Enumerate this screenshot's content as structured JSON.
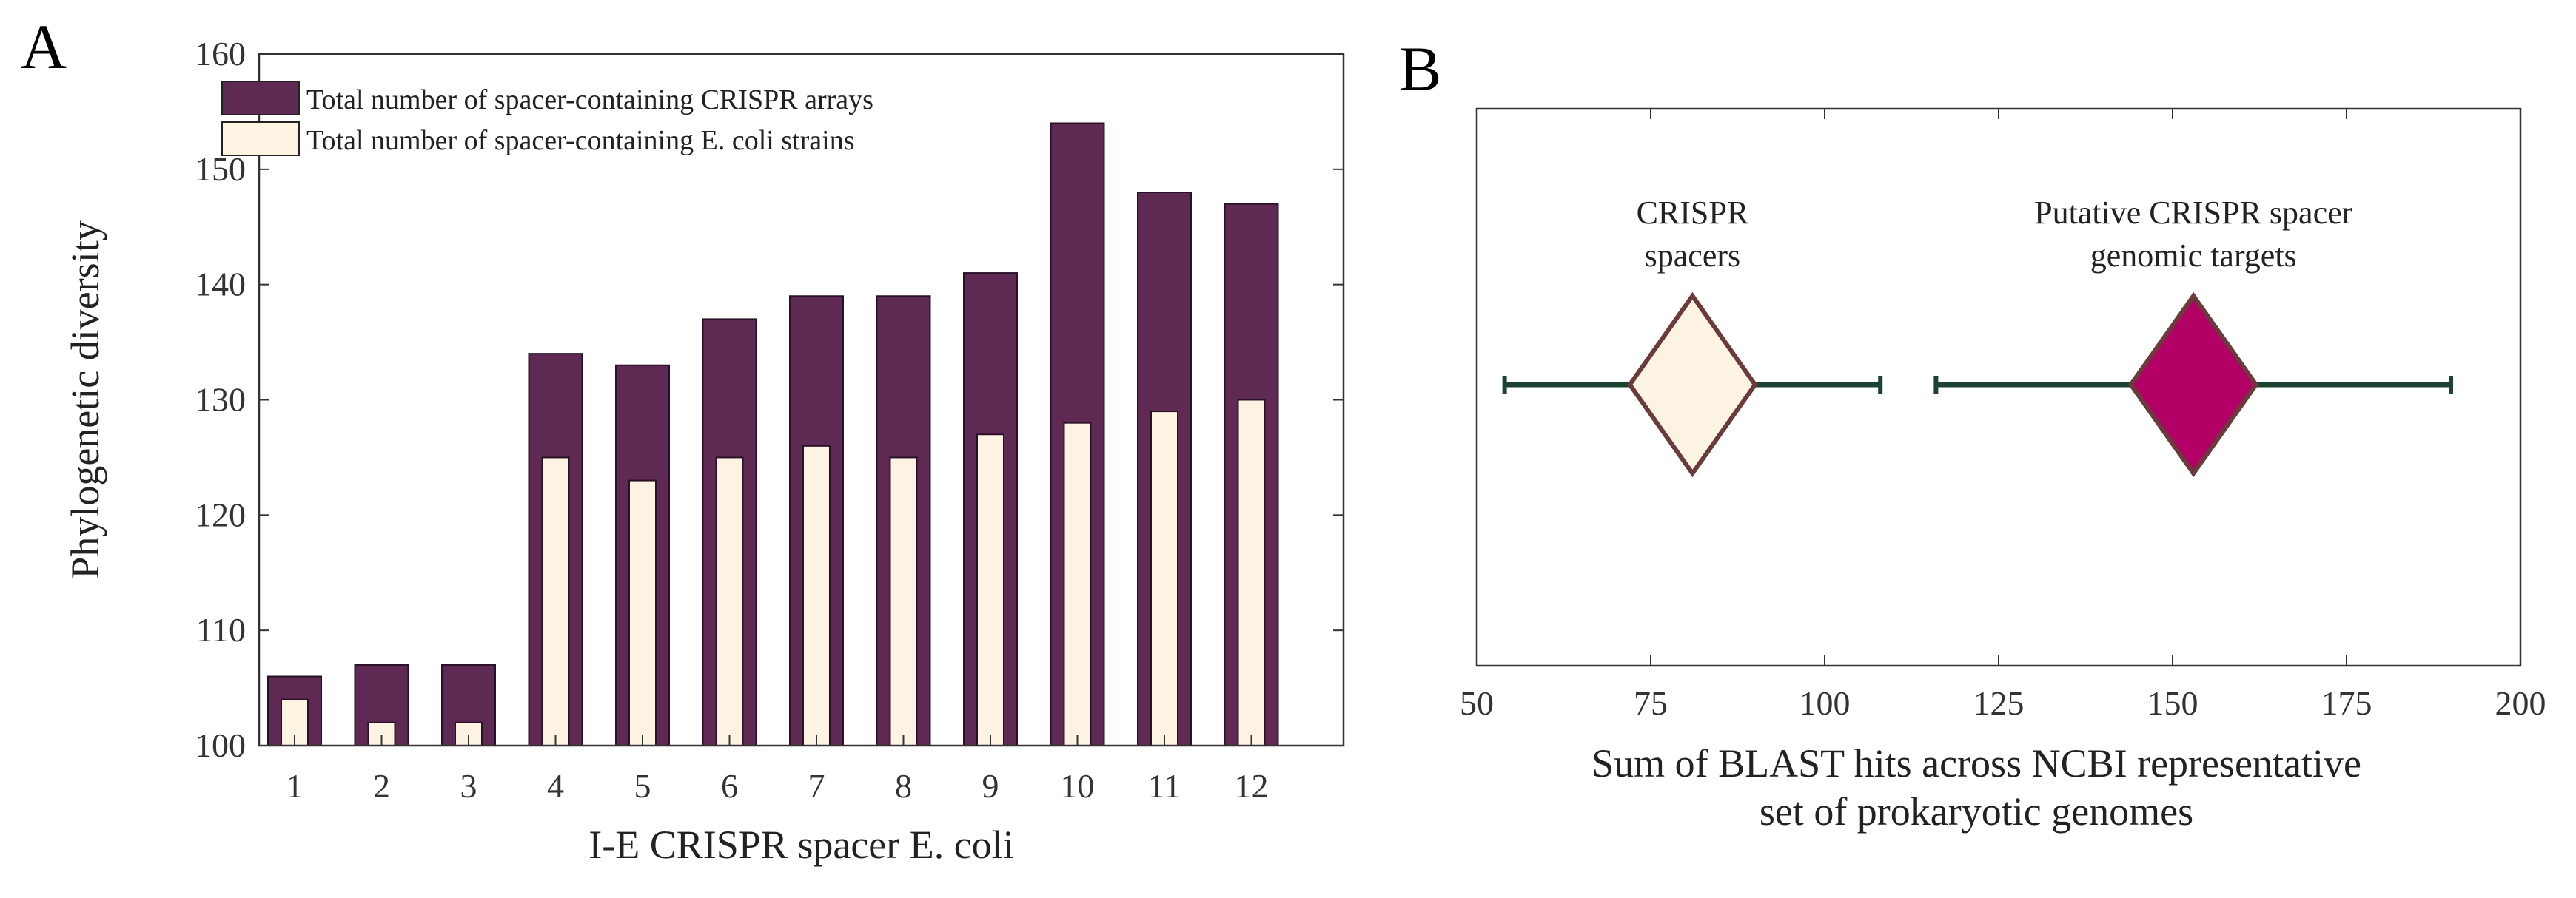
{
  "figure": {
    "panel_a_letter": "A",
    "panel_b_letter": "B"
  },
  "chart_data": [
    {
      "type": "bar",
      "panel": "A",
      "title": "",
      "xlabel": "I-E CRISPR spacer E. coli",
      "ylabel": "Phylogenetic diversity",
      "ylim": [
        100,
        160
      ],
      "yticks": [
        "100",
        "110",
        "120",
        "130",
        "140",
        "150",
        "160"
      ],
      "categories": [
        "1",
        "2",
        "3",
        "4",
        "5",
        "6",
        "7",
        "8",
        "9",
        "10",
        "11",
        "12"
      ],
      "legend_position": "top-left",
      "series": [
        {
          "name": "Total number of spacer-containing CRISPR arrays",
          "color": "#5e2a53",
          "values": [
            106,
            107,
            107,
            134,
            133,
            137,
            139,
            139,
            141,
            154,
            148,
            147
          ]
        },
        {
          "name": "Total number of spacer-containing E. coli strains",
          "color": "#fdf3e2",
          "values": [
            104,
            102,
            102,
            125,
            123,
            125,
            126,
            125,
            127,
            128,
            129,
            130
          ]
        }
      ]
    },
    {
      "type": "scatter",
      "panel": "B",
      "title": "",
      "xlabel_line1": "Sum of BLAST hits across NCBI representative",
      "xlabel_line2": "set of prokaryotic genomes",
      "ylabel": "",
      "xlim": [
        50,
        200
      ],
      "xticks": [
        "50",
        "75",
        "100",
        "125",
        "150",
        "175",
        "200"
      ],
      "series": [
        {
          "name": "CRISPR spacers",
          "label_lines": [
            "CRISPR",
            "spacers"
          ],
          "center": 81,
          "ci": [
            72,
            90
          ],
          "range": [
            54,
            108
          ],
          "fill": "#fdf3e2"
        },
        {
          "name": "Putative CRISPR spacer genomic targets",
          "label_lines": [
            "Putative CRISPR spacer",
            "genomic targets"
          ],
          "center": 153,
          "ci": [
            144,
            162
          ],
          "range": [
            116,
            190
          ],
          "fill": "#b30066"
        }
      ],
      "whisker_color": "#1b4332",
      "diamond_edge": "#6b3a3a"
    }
  ]
}
